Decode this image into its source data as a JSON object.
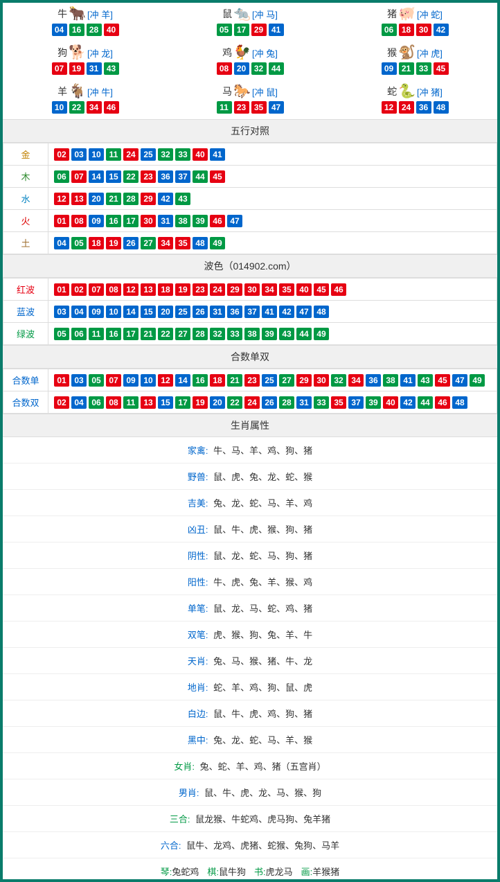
{
  "colors": {
    "red": "#e60012",
    "blue": "#0066cc",
    "green": "#009944",
    "frame": "#0a7c6b",
    "section_bg": "#f0f0f0",
    "border": "#ddd"
  },
  "ball_color_map": {
    "01": "red",
    "02": "red",
    "07": "red",
    "08": "red",
    "12": "red",
    "13": "red",
    "18": "red",
    "19": "red",
    "23": "red",
    "24": "red",
    "29": "red",
    "30": "red",
    "34": "red",
    "35": "red",
    "40": "red",
    "45": "red",
    "46": "red",
    "03": "blue",
    "04": "blue",
    "09": "blue",
    "10": "blue",
    "14": "blue",
    "15": "blue",
    "20": "blue",
    "25": "blue",
    "26": "blue",
    "31": "blue",
    "36": "blue",
    "37": "blue",
    "41": "blue",
    "42": "blue",
    "47": "blue",
    "48": "blue",
    "05": "green",
    "06": "green",
    "11": "green",
    "16": "green",
    "17": "green",
    "21": "green",
    "22": "green",
    "27": "green",
    "28": "green",
    "32": "green",
    "33": "green",
    "38": "green",
    "39": "green",
    "43": "green",
    "44": "green",
    "49": "green"
  },
  "zodiac": [
    {
      "name": "牛",
      "emoji": "🐂",
      "clash": "[冲 羊]",
      "balls": [
        "04",
        "16",
        "28",
        "40"
      ]
    },
    {
      "name": "鼠",
      "emoji": "🐀",
      "clash": "[冲 马]",
      "balls": [
        "05",
        "17",
        "29",
        "41"
      ]
    },
    {
      "name": "猪",
      "emoji": "🐖",
      "clash": "[冲 蛇]",
      "balls": [
        "06",
        "18",
        "30",
        "42"
      ]
    },
    {
      "name": "狗",
      "emoji": "🐕",
      "clash": "[冲 龙]",
      "balls": [
        "07",
        "19",
        "31",
        "43"
      ]
    },
    {
      "name": "鸡",
      "emoji": "🐓",
      "clash": "[冲 兔]",
      "balls": [
        "08",
        "20",
        "32",
        "44"
      ]
    },
    {
      "name": "猴",
      "emoji": "🐒",
      "clash": "[冲 虎]",
      "balls": [
        "09",
        "21",
        "33",
        "45"
      ]
    },
    {
      "name": "羊",
      "emoji": "🐐",
      "clash": "[冲 牛]",
      "balls": [
        "10",
        "22",
        "34",
        "46"
      ]
    },
    {
      "name": "马",
      "emoji": "🐎",
      "clash": "[冲 鼠]",
      "balls": [
        "11",
        "23",
        "35",
        "47"
      ]
    },
    {
      "name": "蛇",
      "emoji": "🐍",
      "clash": "[冲 猪]",
      "balls": [
        "12",
        "24",
        "36",
        "48"
      ]
    }
  ],
  "sections": {
    "wuxing_title": "五行对照",
    "wuxing": [
      {
        "label": "金",
        "cls": "lbl-gold",
        "balls": [
          "02",
          "03",
          "10",
          "11",
          "24",
          "25",
          "32",
          "33",
          "40",
          "41"
        ]
      },
      {
        "label": "木",
        "cls": "lbl-wood",
        "balls": [
          "06",
          "07",
          "14",
          "15",
          "22",
          "23",
          "36",
          "37",
          "44",
          "45"
        ]
      },
      {
        "label": "水",
        "cls": "lbl-water",
        "balls": [
          "12",
          "13",
          "20",
          "21",
          "28",
          "29",
          "42",
          "43"
        ]
      },
      {
        "label": "火",
        "cls": "lbl-fire",
        "balls": [
          "01",
          "08",
          "09",
          "16",
          "17",
          "30",
          "31",
          "38",
          "39",
          "46",
          "47"
        ]
      },
      {
        "label": "土",
        "cls": "lbl-earth",
        "balls": [
          "04",
          "05",
          "18",
          "19",
          "26",
          "27",
          "34",
          "35",
          "48",
          "49"
        ]
      }
    ],
    "bose_title": "波色（014902.com）",
    "bose": [
      {
        "label": "红波",
        "cls": "lbl-red",
        "balls": [
          "01",
          "02",
          "07",
          "08",
          "12",
          "13",
          "18",
          "19",
          "23",
          "24",
          "29",
          "30",
          "34",
          "35",
          "40",
          "45",
          "46"
        ]
      },
      {
        "label": "蓝波",
        "cls": "lbl-blue",
        "balls": [
          "03",
          "04",
          "09",
          "10",
          "14",
          "15",
          "20",
          "25",
          "26",
          "31",
          "36",
          "37",
          "41",
          "42",
          "47",
          "48"
        ]
      },
      {
        "label": "绿波",
        "cls": "lbl-green",
        "balls": [
          "05",
          "06",
          "11",
          "16",
          "17",
          "21",
          "22",
          "27",
          "28",
          "32",
          "33",
          "38",
          "39",
          "43",
          "44",
          "49"
        ]
      }
    ],
    "heshu_title": "合数单双",
    "heshu": [
      {
        "label": "合数单",
        "cls": "lbl-blue",
        "balls": [
          "01",
          "03",
          "05",
          "07",
          "09",
          "10",
          "12",
          "14",
          "16",
          "18",
          "21",
          "23",
          "25",
          "27",
          "29",
          "30",
          "32",
          "34",
          "36",
          "38",
          "41",
          "43",
          "45",
          "47",
          "49"
        ]
      },
      {
        "label": "合数双",
        "cls": "lbl-blue",
        "balls": [
          "02",
          "04",
          "06",
          "08",
          "11",
          "13",
          "15",
          "17",
          "19",
          "20",
          "22",
          "24",
          "26",
          "28",
          "31",
          "33",
          "35",
          "37",
          "39",
          "40",
          "42",
          "44",
          "46",
          "48"
        ]
      }
    ],
    "attr_title": "生肖属性",
    "attrs": [
      {
        "label": "家禽:",
        "cls": "lbl-blue",
        "value": "牛、马、羊、鸡、狗、猪"
      },
      {
        "label": "野兽:",
        "cls": "lbl-blue",
        "value": "鼠、虎、兔、龙、蛇、猴"
      },
      {
        "label": "吉美:",
        "cls": "lbl-blue",
        "value": "兔、龙、蛇、马、羊、鸡"
      },
      {
        "label": "凶丑:",
        "cls": "lbl-blue",
        "value": "鼠、牛、虎、猴、狗、猪"
      },
      {
        "label": "阴性:",
        "cls": "lbl-blue",
        "value": "鼠、龙、蛇、马、狗、猪"
      },
      {
        "label": "阳性:",
        "cls": "lbl-blue",
        "value": "牛、虎、兔、羊、猴、鸡"
      },
      {
        "label": "单笔:",
        "cls": "lbl-blue",
        "value": "鼠、龙、马、蛇、鸡、猪"
      },
      {
        "label": "双笔:",
        "cls": "lbl-blue",
        "value": "虎、猴、狗、兔、羊、牛"
      },
      {
        "label": "天肖:",
        "cls": "lbl-blue",
        "value": "兔、马、猴、猪、牛、龙"
      },
      {
        "label": "地肖:",
        "cls": "lbl-blue",
        "value": "蛇、羊、鸡、狗、鼠、虎"
      },
      {
        "label": "白边:",
        "cls": "lbl-blue",
        "value": "鼠、牛、虎、鸡、狗、猪"
      },
      {
        "label": "黑中:",
        "cls": "lbl-blue",
        "value": "兔、龙、蛇、马、羊、猴"
      },
      {
        "label": "女肖:",
        "cls": "lbl-green",
        "value": "兔、蛇、羊、鸡、猪（五宫肖）"
      },
      {
        "label": "男肖:",
        "cls": "lbl-blue",
        "value": "鼠、牛、虎、龙、马、猴、狗"
      },
      {
        "label": "三合:",
        "cls": "lbl-green",
        "value": "鼠龙猴、牛蛇鸡、虎马狗、兔羊猪"
      },
      {
        "label": "六合:",
        "cls": "lbl-blue",
        "value": "鼠牛、龙鸡、虎猪、蛇猴、兔狗、马羊"
      }
    ],
    "final": [
      {
        "label": "琴:",
        "cls": "lbl-green",
        "value": "兔蛇鸡"
      },
      {
        "label": "棋:",
        "cls": "lbl-green",
        "value": "鼠牛狗"
      },
      {
        "label": "书:",
        "cls": "lbl-green",
        "value": "虎龙马"
      },
      {
        "label": "画:",
        "cls": "lbl-green",
        "value": "羊猴猪"
      }
    ]
  }
}
